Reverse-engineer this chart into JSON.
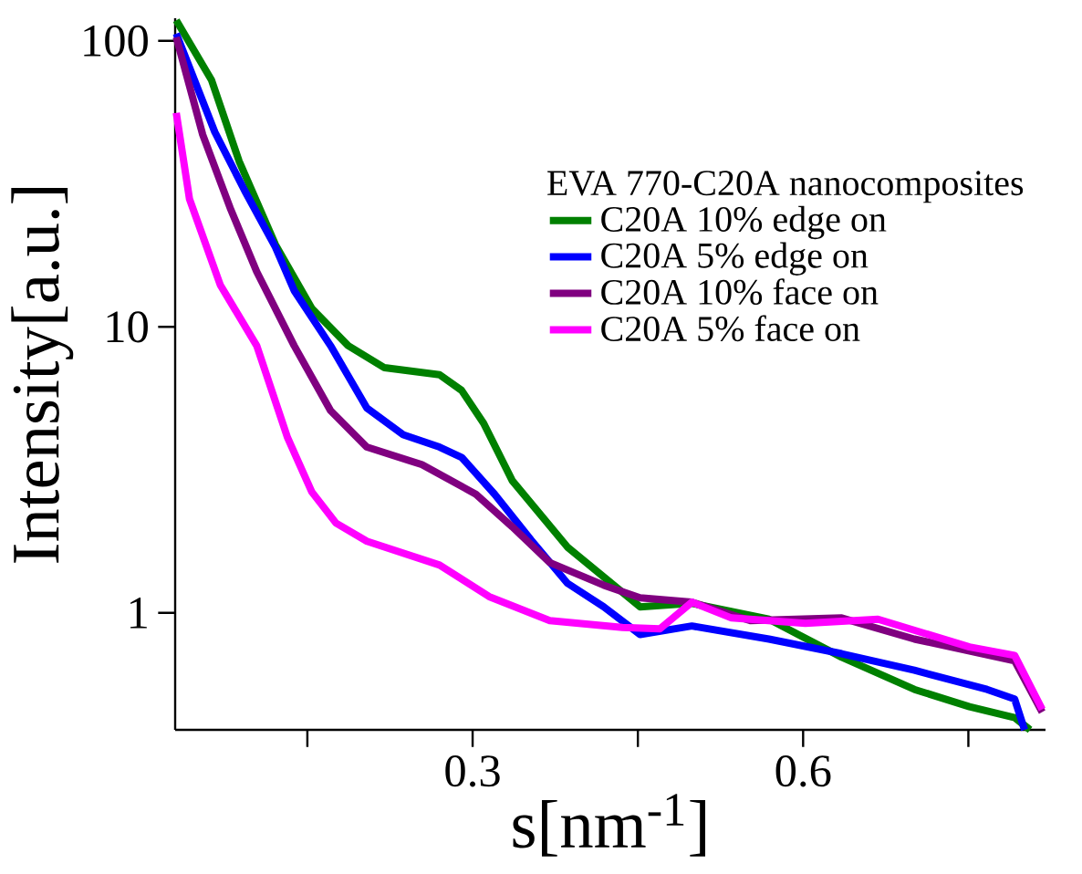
{
  "chart_data": {
    "type": "line",
    "xlabel": "s[nm$^{-1}$]",
    "ylabel": "Intensity[a.u.]",
    "legend_title": "EVA 770-C20A nanocomposites",
    "legend": "top right",
    "log": "y",
    "grid": false,
    "marker": "none",
    "line_style": "solid",
    "xlim": [
      0.03,
      0.82
    ],
    "xticks": [
      {
        "value": 0.15,
        "label": null
      },
      0.3,
      {
        "value": 0.45,
        "label": null
      },
      0.6,
      {
        "value": 0.75,
        "label": null
      }
    ],
    "ylim": [
      0.39,
      120
    ],
    "yticks": [
      1,
      10,
      100
    ],
    "series": [
      {
        "name": "C20A 10% edge on",
        "color": "#008000",
        "x": [
          0.031,
          0.063,
          0.088,
          0.121,
          0.154,
          0.187,
          0.22,
          0.27,
          0.29,
          0.31,
          0.336,
          0.386,
          0.452,
          0.499,
          0.569,
          0.635,
          0.701,
          0.751,
          0.792,
          0.806
        ],
        "values": [
          118,
          73,
          38,
          19.4,
          11.6,
          8.6,
          7.2,
          6.8,
          6.0,
          4.6,
          2.9,
          1.7,
          1.05,
          1.08,
          0.95,
          0.7,
          0.54,
          0.47,
          0.43,
          0.39
        ]
      },
      {
        "name": "C20A 5% edge on",
        "color": "#0000ff",
        "x": [
          0.031,
          0.066,
          0.093,
          0.121,
          0.138,
          0.171,
          0.204,
          0.237,
          0.27,
          0.29,
          0.32,
          0.353,
          0.386,
          0.419,
          0.452,
          0.499,
          0.569,
          0.635,
          0.701,
          0.767,
          0.792,
          0.801
        ],
        "values": [
          106,
          48,
          30,
          19,
          13.4,
          8.6,
          5.2,
          4.2,
          3.8,
          3.5,
          2.6,
          1.8,
          1.27,
          1.05,
          0.84,
          0.9,
          0.81,
          0.72,
          0.63,
          0.54,
          0.5,
          0.39
        ]
      },
      {
        "name": "C20A 10% face on",
        "color": "#800080",
        "x": [
          0.031,
          0.055,
          0.08,
          0.104,
          0.138,
          0.171,
          0.204,
          0.254,
          0.303,
          0.336,
          0.37,
          0.419,
          0.452,
          0.499,
          0.552,
          0.635,
          0.701,
          0.792,
          0.817
        ],
        "values": [
          103,
          47,
          26,
          15.6,
          8.6,
          5.1,
          3.8,
          3.3,
          2.6,
          2.0,
          1.5,
          1.25,
          1.13,
          1.09,
          0.94,
          0.96,
          0.81,
          0.68,
          0.45
        ]
      },
      {
        "name": "C20A 5% face on",
        "color": "#ff00ff",
        "x": [
          0.031,
          0.043,
          0.071,
          0.104,
          0.132,
          0.154,
          0.176,
          0.204,
          0.27,
          0.315,
          0.37,
          0.436,
          0.47,
          0.499,
          0.535,
          0.602,
          0.668,
          0.751,
          0.792,
          0.817
        ],
        "values": [
          56,
          28,
          14,
          8.6,
          4.1,
          2.65,
          2.06,
          1.78,
          1.47,
          1.14,
          0.94,
          0.89,
          0.88,
          1.09,
          0.96,
          0.92,
          0.95,
          0.76,
          0.71,
          0.46
        ]
      }
    ]
  }
}
